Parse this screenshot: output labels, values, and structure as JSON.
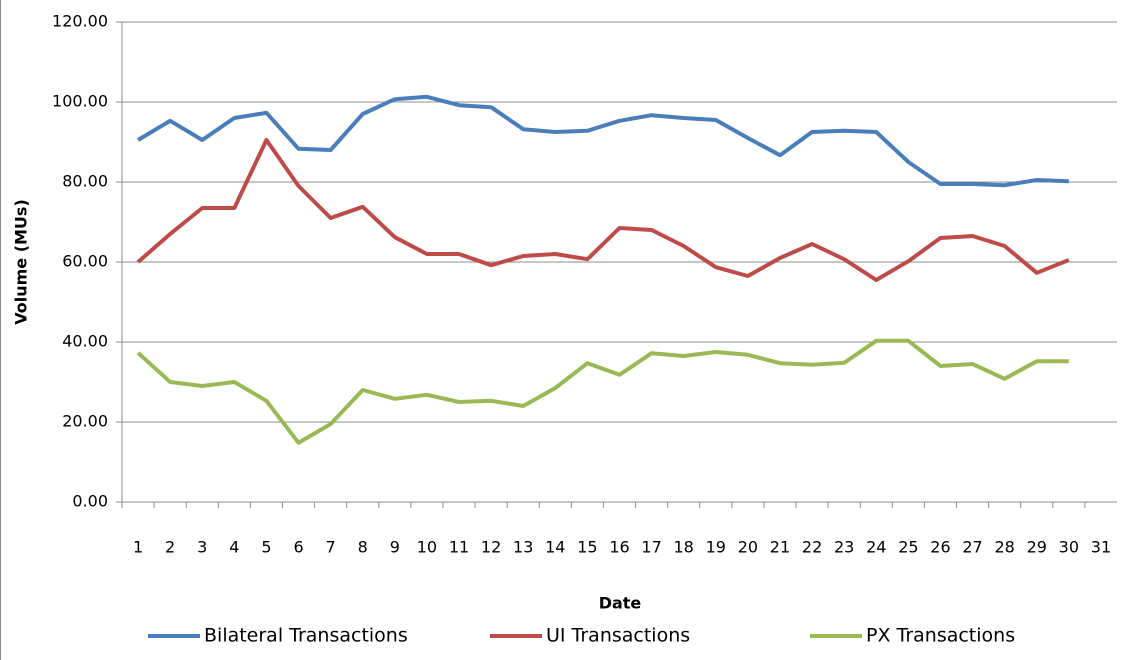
{
  "chart_data": {
    "type": "line",
    "x_label": "Date",
    "y_label": "Volume (MUs)",
    "categories": [
      1,
      2,
      3,
      4,
      5,
      6,
      7,
      8,
      9,
      10,
      11,
      12,
      13,
      14,
      15,
      16,
      17,
      18,
      19,
      20,
      21,
      22,
      23,
      24,
      25,
      26,
      27,
      28,
      29,
      30,
      31
    ],
    "series": [
      {
        "name": "Bilateral Transactions",
        "color": "#4a7ebb",
        "values": [
          90.5,
          95.3,
          90.5,
          96,
          97.3,
          88.3,
          88,
          97,
          100.7,
          101.3,
          99.2,
          98.7,
          93.2,
          92.5,
          92.8,
          95.3,
          96.7,
          96,
          95.5,
          91,
          86.7,
          92.5,
          92.8,
          92.5,
          85,
          79.5,
          79.5,
          79.2,
          80.5,
          80.2,
          null
        ]
      },
      {
        "name": "UI Transactions",
        "color": "#be4b48",
        "values": [
          60,
          67,
          73.5,
          73.5,
          90.5,
          79,
          71,
          73.8,
          66.2,
          62,
          62,
          59.2,
          61.5,
          62,
          60.7,
          68.5,
          68,
          64,
          58.7,
          56.5,
          61,
          64.5,
          60.7,
          55.5,
          60.2,
          66,
          66.5,
          64,
          57.3,
          60.5,
          null
        ]
      },
      {
        "name": "PX Transactions",
        "color": "#98b954",
        "values": [
          37.3,
          30,
          29,
          30,
          25.3,
          14.8,
          19.5,
          28,
          25.8,
          26.8,
          25,
          25.3,
          24,
          28.5,
          34.7,
          31.8,
          37.2,
          36.5,
          37.5,
          36.8,
          34.7,
          34.3,
          34.8,
          40.3,
          40.3,
          34,
          34.5,
          30.8,
          35.2,
          35.2,
          null
        ]
      }
    ],
    "ylim": [
      0,
      120
    ],
    "yticks": [
      {
        "value": 0,
        "label": "0.00"
      },
      {
        "value": 20,
        "label": "20.00"
      },
      {
        "value": 40,
        "label": "40.00"
      },
      {
        "value": 60,
        "label": "60.00"
      },
      {
        "value": 80,
        "label": "80.00"
      },
      {
        "value": 100,
        "label": "100.00"
      },
      {
        "value": 120,
        "label": "120.00"
      }
    ],
    "grid": true,
    "legend": "bottom"
  }
}
